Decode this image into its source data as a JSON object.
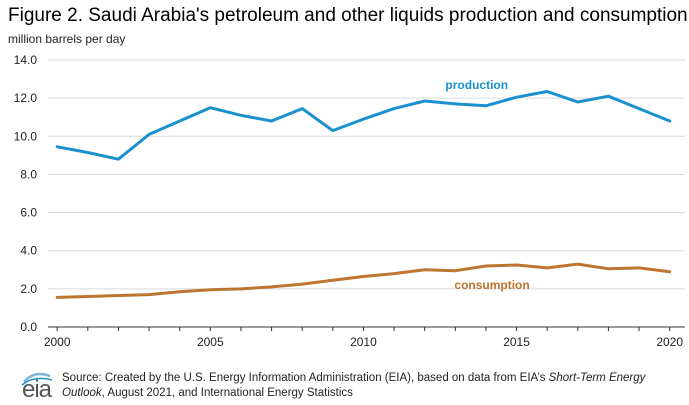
{
  "figure": {
    "title": "Figure 2. Saudi Arabia's petroleum and other liquids production and consumption",
    "units": "million barrels per day"
  },
  "footer": {
    "logo_text": "eia",
    "source_prefix": "Source: Created by the U.S. Energy Information Administration (EIA), based on data from EIA’s ",
    "source_italic_1": "Short-Term Energy Outlook",
    "source_middle": ", August 2021, and International Energy Statistics"
  },
  "chart_data": {
    "type": "line",
    "x": [
      2000,
      2001,
      2002,
      2003,
      2004,
      2005,
      2006,
      2007,
      2008,
      2009,
      2010,
      2011,
      2012,
      2013,
      2014,
      2015,
      2016,
      2017,
      2018,
      2019,
      2020
    ],
    "xticks": [
      2000,
      2005,
      2010,
      2015,
      2020
    ],
    "yticks": [
      "0.0",
      "2.0",
      "4.0",
      "6.0",
      "8.0",
      "10.0",
      "12.0",
      "14.0"
    ],
    "ylim": [
      0,
      14
    ],
    "xlim": [
      1999.7,
      2020.5
    ],
    "grid": "horizontal",
    "series": [
      {
        "name": "production",
        "color": "#1a91cf",
        "values": [
          9.45,
          9.15,
          8.8,
          10.1,
          10.8,
          11.5,
          11.1,
          10.8,
          11.45,
          10.3,
          10.9,
          11.45,
          11.85,
          11.7,
          11.6,
          12.05,
          12.35,
          11.8,
          12.1,
          11.45,
          10.8
        ]
      },
      {
        "name": "consumption",
        "color": "#bd7530",
        "values": [
          1.55,
          1.6,
          1.65,
          1.7,
          1.85,
          1.95,
          2.0,
          2.1,
          2.25,
          2.45,
          2.65,
          2.8,
          3.0,
          2.95,
          3.2,
          3.25,
          3.1,
          3.3,
          3.05,
          3.1,
          2.9
        ]
      }
    ]
  }
}
